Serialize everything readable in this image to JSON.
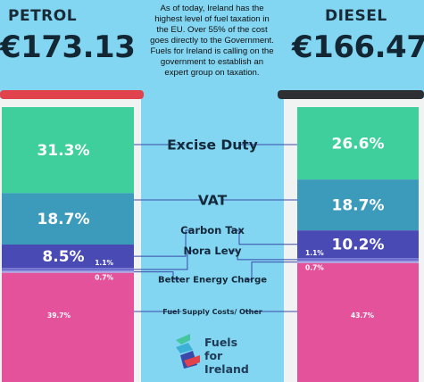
{
  "petrol": {
    "name": "PETROL",
    "price": "€173.13"
  },
  "diesel": {
    "name": "DIESEL",
    "price": "€166.47"
  },
  "note": [
    "As of today, Ireland has the",
    "highest level of fuel taxation in",
    "the EU. Over 55% of the cost",
    "goes directly to the Government.",
    "Fuels for Ireland is calling on the",
    "government to establish an",
    "expert group on taxation."
  ],
  "logo": {
    "line1": "Fuels",
    "line2": "for",
    "line3": "Ireland"
  },
  "colors": {
    "excise": "#3ecf9c",
    "vat": "#3c9bbb",
    "carbon": "#4a4ab5",
    "nora": "#6f6fd0",
    "better": "#a9a9e6",
    "supply": "#e4529c",
    "background": "#82d6f2",
    "pump_cap_petrol": "#e0434b",
    "pump_cap_diesel": "#2d2f33"
  },
  "chart_data": {
    "type": "bar",
    "stacked": true,
    "categories": [
      "PETROL",
      "DIESEL"
    ],
    "series": [
      {
        "name": "Excise Duty",
        "values": [
          31.3,
          26.6
        ],
        "labels": [
          "31.3%",
          "26.6%"
        ]
      },
      {
        "name": "VAT",
        "values": [
          18.7,
          18.7
        ],
        "labels": [
          "18.7%",
          "18.7%"
        ]
      },
      {
        "name": "Carbon Tax",
        "values": [
          8.5,
          10.2
        ],
        "labels": [
          "8.5%",
          "10.2%"
        ]
      },
      {
        "name": "Nora Levy",
        "values": [
          1.1,
          1.1
        ],
        "labels": [
          "1.1%",
          "1.1%"
        ]
      },
      {
        "name": "Better Energy Charge",
        "values": [
          0.7,
          0.7
        ],
        "labels": [
          "0.7%",
          "0.7%"
        ]
      },
      {
        "name": "Fuel Supply Costs/ Other",
        "values": [
          39.7,
          43.7
        ],
        "labels": [
          "39.7%",
          "43.7%"
        ]
      }
    ],
    "ylim": [
      0,
      100
    ],
    "legend": "center"
  }
}
